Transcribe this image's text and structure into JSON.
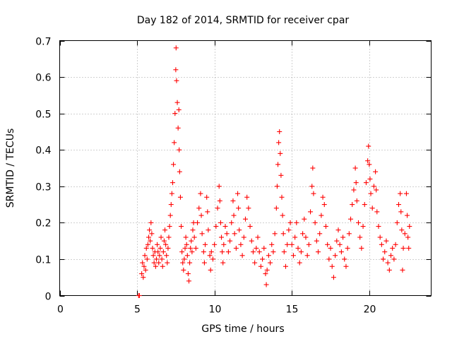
{
  "chart_data": {
    "type": "scatter",
    "title": "Day 182 of 2014, SRMTID for receiver cpar",
    "xlabel": "GPS time / hours",
    "ylabel": "SRMTID / TECUs",
    "xlim": [
      0,
      24
    ],
    "ylim": [
      0,
      0.7
    ],
    "xticks": [
      0,
      5,
      10,
      15,
      20
    ],
    "yticks": [
      0,
      0.1,
      0.2,
      0.3,
      0.4,
      0.5,
      0.6,
      0.7
    ],
    "grid": true,
    "marker": "+",
    "color": "#ff0000",
    "series": [
      {
        "name": "SRMTID",
        "points": [
          [
            5.1,
            0.0
          ],
          [
            5.15,
            0.0
          ],
          [
            5.3,
            0.06
          ],
          [
            5.35,
            0.09
          ],
          [
            5.4,
            0.05
          ],
          [
            5.45,
            0.08
          ],
          [
            5.5,
            0.11
          ],
          [
            5.55,
            0.07
          ],
          [
            5.6,
            0.13
          ],
          [
            5.65,
            0.1
          ],
          [
            5.7,
            0.14
          ],
          [
            5.75,
            0.16
          ],
          [
            5.8,
            0.18
          ],
          [
            5.85,
            0.15
          ],
          [
            5.9,
            0.2
          ],
          [
            5.95,
            0.17
          ],
          [
            6.0,
            0.13
          ],
          [
            6.05,
            0.11
          ],
          [
            6.1,
            0.09
          ],
          [
            6.15,
            0.12
          ],
          [
            6.2,
            0.08
          ],
          [
            6.25,
            0.1
          ],
          [
            6.3,
            0.14
          ],
          [
            6.35,
            0.12
          ],
          [
            6.4,
            0.09
          ],
          [
            6.45,
            0.11
          ],
          [
            6.5,
            0.13
          ],
          [
            6.55,
            0.16
          ],
          [
            6.6,
            0.1
          ],
          [
            6.65,
            0.08
          ],
          [
            6.7,
            0.12
          ],
          [
            6.75,
            0.15
          ],
          [
            6.8,
            0.18
          ],
          [
            6.85,
            0.14
          ],
          [
            6.9,
            0.11
          ],
          [
            6.95,
            0.09
          ],
          [
            7.0,
            0.13
          ],
          [
            7.05,
            0.16
          ],
          [
            7.1,
            0.19
          ],
          [
            7.15,
            0.22
          ],
          [
            7.2,
            0.25
          ],
          [
            7.25,
            0.28
          ],
          [
            7.3,
            0.31
          ],
          [
            7.35,
            0.36
          ],
          [
            7.4,
            0.42
          ],
          [
            7.45,
            0.5
          ],
          [
            7.5,
            0.62
          ],
          [
            7.52,
            0.68
          ],
          [
            7.55,
            0.59
          ],
          [
            7.6,
            0.53
          ],
          [
            7.65,
            0.46
          ],
          [
            7.7,
            0.51
          ],
          [
            7.72,
            0.4
          ],
          [
            7.75,
            0.34
          ],
          [
            7.8,
            0.27
          ],
          [
            7.85,
            0.19
          ],
          [
            7.9,
            0.12
          ],
          [
            7.95,
            0.09
          ],
          [
            8.0,
            0.07
          ],
          [
            8.05,
            0.1
          ],
          [
            8.1,
            0.13
          ],
          [
            8.15,
            0.16
          ],
          [
            8.2,
            0.14
          ],
          [
            8.25,
            0.11
          ],
          [
            8.3,
            0.06
          ],
          [
            8.35,
            0.04
          ],
          [
            8.4,
            0.09
          ],
          [
            8.45,
            0.13
          ],
          [
            8.5,
            0.15
          ],
          [
            8.55,
            0.12
          ],
          [
            8.6,
            0.18
          ],
          [
            8.65,
            0.2
          ],
          [
            8.7,
            0.16
          ],
          [
            8.8,
            0.13
          ],
          [
            8.9,
            0.2
          ],
          [
            9.0,
            0.24
          ],
          [
            9.1,
            0.28
          ],
          [
            9.15,
            0.22
          ],
          [
            9.2,
            0.17
          ],
          [
            9.3,
            0.12
          ],
          [
            9.35,
            0.09
          ],
          [
            9.4,
            0.14
          ],
          [
            9.5,
            0.27
          ],
          [
            9.55,
            0.23
          ],
          [
            9.6,
            0.18
          ],
          [
            9.7,
            0.11
          ],
          [
            9.75,
            0.07
          ],
          [
            9.8,
            0.12
          ],
          [
            9.9,
            0.1
          ],
          [
            10.0,
            0.14
          ],
          [
            10.1,
            0.19
          ],
          [
            10.2,
            0.24
          ],
          [
            10.3,
            0.3
          ],
          [
            10.35,
            0.26
          ],
          [
            10.4,
            0.2
          ],
          [
            10.45,
            0.16
          ],
          [
            10.5,
            0.12
          ],
          [
            10.55,
            0.09
          ],
          [
            10.6,
            0.14
          ],
          [
            10.7,
            0.19
          ],
          [
            10.8,
            0.17
          ],
          [
            10.9,
            0.12
          ],
          [
            11.0,
            0.15
          ],
          [
            11.1,
            0.2
          ],
          [
            11.2,
            0.26
          ],
          [
            11.25,
            0.22
          ],
          [
            11.3,
            0.17
          ],
          [
            11.4,
            0.13
          ],
          [
            11.5,
            0.28
          ],
          [
            11.55,
            0.24
          ],
          [
            11.6,
            0.18
          ],
          [
            11.7,
            0.14
          ],
          [
            11.8,
            0.11
          ],
          [
            11.9,
            0.16
          ],
          [
            12.0,
            0.21
          ],
          [
            12.1,
            0.27
          ],
          [
            12.2,
            0.24
          ],
          [
            12.3,
            0.19
          ],
          [
            12.4,
            0.15
          ],
          [
            12.5,
            0.12
          ],
          [
            12.6,
            0.09
          ],
          [
            12.7,
            0.13
          ],
          [
            12.8,
            0.16
          ],
          [
            12.9,
            0.12
          ],
          [
            13.0,
            0.08
          ],
          [
            13.1,
            0.1
          ],
          [
            13.2,
            0.13
          ],
          [
            13.3,
            0.06
          ],
          [
            13.35,
            0.03
          ],
          [
            13.4,
            0.07
          ],
          [
            13.5,
            0.11
          ],
          [
            13.6,
            0.09
          ],
          [
            13.7,
            0.14
          ],
          [
            13.8,
            0.12
          ],
          [
            13.9,
            0.17
          ],
          [
            14.0,
            0.24
          ],
          [
            14.05,
            0.3
          ],
          [
            14.1,
            0.36
          ],
          [
            14.15,
            0.42
          ],
          [
            14.2,
            0.45
          ],
          [
            14.25,
            0.39
          ],
          [
            14.3,
            0.33
          ],
          [
            14.35,
            0.27
          ],
          [
            14.4,
            0.22
          ],
          [
            14.45,
            0.17
          ],
          [
            14.5,
            0.12
          ],
          [
            14.6,
            0.08
          ],
          [
            14.7,
            0.14
          ],
          [
            14.8,
            0.18
          ],
          [
            14.9,
            0.2
          ],
          [
            15.0,
            0.14
          ],
          [
            15.1,
            0.11
          ],
          [
            15.2,
            0.16
          ],
          [
            15.3,
            0.2
          ],
          [
            15.4,
            0.13
          ],
          [
            15.5,
            0.09
          ],
          [
            15.6,
            0.12
          ],
          [
            15.7,
            0.17
          ],
          [
            15.8,
            0.21
          ],
          [
            15.9,
            0.16
          ],
          [
            16.0,
            0.11
          ],
          [
            16.1,
            0.14
          ],
          [
            16.2,
            0.23
          ],
          [
            16.3,
            0.3
          ],
          [
            16.35,
            0.35
          ],
          [
            16.4,
            0.28
          ],
          [
            16.5,
            0.2
          ],
          [
            16.6,
            0.15
          ],
          [
            16.7,
            0.12
          ],
          [
            16.8,
            0.17
          ],
          [
            16.9,
            0.22
          ],
          [
            17.0,
            0.27
          ],
          [
            17.1,
            0.25
          ],
          [
            17.2,
            0.19
          ],
          [
            17.3,
            0.14
          ],
          [
            17.4,
            0.1
          ],
          [
            17.5,
            0.13
          ],
          [
            17.6,
            0.08
          ],
          [
            17.7,
            0.05
          ],
          [
            17.8,
            0.11
          ],
          [
            17.9,
            0.15
          ],
          [
            18.0,
            0.18
          ],
          [
            18.1,
            0.14
          ],
          [
            18.2,
            0.12
          ],
          [
            18.3,
            0.16
          ],
          [
            18.4,
            0.1
          ],
          [
            18.5,
            0.08
          ],
          [
            18.6,
            0.13
          ],
          [
            18.7,
            0.17
          ],
          [
            18.8,
            0.21
          ],
          [
            18.9,
            0.25
          ],
          [
            19.0,
            0.29
          ],
          [
            19.1,
            0.35
          ],
          [
            19.15,
            0.31
          ],
          [
            19.2,
            0.26
          ],
          [
            19.3,
            0.2
          ],
          [
            19.4,
            0.16
          ],
          [
            19.5,
            0.13
          ],
          [
            19.6,
            0.19
          ],
          [
            19.7,
            0.25
          ],
          [
            19.8,
            0.31
          ],
          [
            19.9,
            0.37
          ],
          [
            19.95,
            0.41
          ],
          [
            20.0,
            0.36
          ],
          [
            20.05,
            0.32
          ],
          [
            20.1,
            0.28
          ],
          [
            20.2,
            0.24
          ],
          [
            20.3,
            0.3
          ],
          [
            20.4,
            0.34
          ],
          [
            20.45,
            0.29
          ],
          [
            20.5,
            0.23
          ],
          [
            20.6,
            0.19
          ],
          [
            20.7,
            0.16
          ],
          [
            20.8,
            0.14
          ],
          [
            20.9,
            0.1
          ],
          [
            21.0,
            0.12
          ],
          [
            21.1,
            0.15
          ],
          [
            21.2,
            0.09
          ],
          [
            21.3,
            0.07
          ],
          [
            21.4,
            0.11
          ],
          [
            21.5,
            0.13
          ],
          [
            21.6,
            0.1
          ],
          [
            21.7,
            0.14
          ],
          [
            21.8,
            0.2
          ],
          [
            21.9,
            0.25
          ],
          [
            22.0,
            0.28
          ],
          [
            22.05,
            0.23
          ],
          [
            22.1,
            0.18
          ],
          [
            22.15,
            0.07
          ],
          [
            22.2,
            0.13
          ],
          [
            22.3,
            0.17
          ],
          [
            22.4,
            0.28
          ],
          [
            22.45,
            0.22
          ],
          [
            22.5,
            0.16
          ],
          [
            22.55,
            0.13
          ],
          [
            22.6,
            0.19
          ]
        ]
      }
    ]
  }
}
